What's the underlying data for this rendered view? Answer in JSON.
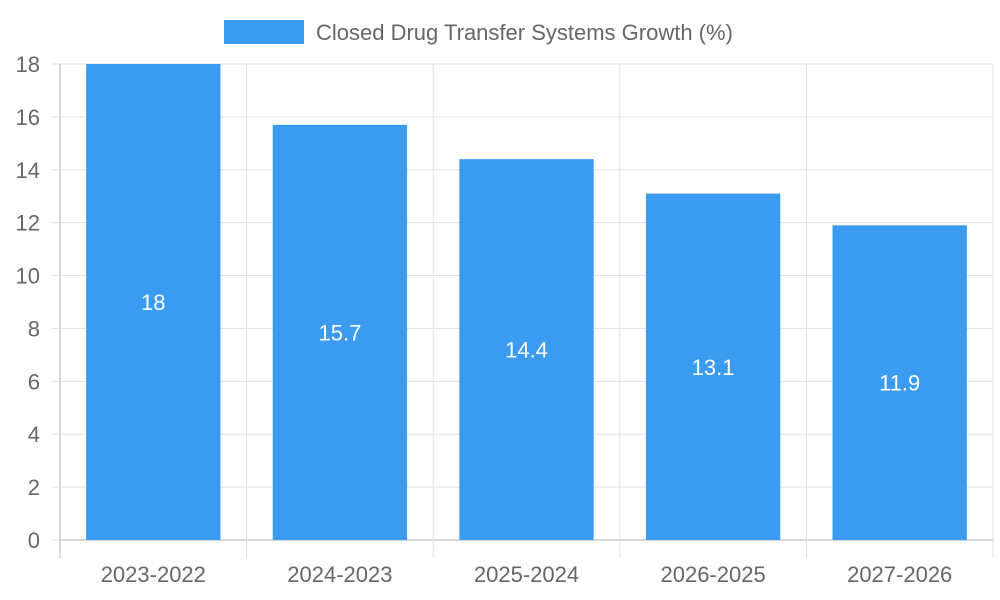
{
  "chart_data": {
    "type": "bar",
    "categories": [
      "2023-2022",
      "2024-2023",
      "2025-2024",
      "2026-2025",
      "2027-2026"
    ],
    "series": [
      {
        "name": "Closed Drug Transfer Systems Growth (%)",
        "values": [
          18,
          15.7,
          14.4,
          13.1,
          11.9
        ],
        "color": "#3a9bf0"
      }
    ],
    "value_labels": [
      "18",
      "15.7",
      "14.4",
      "13.1",
      "11.9"
    ],
    "y_ticks": [
      "0",
      "2",
      "4",
      "6",
      "8",
      "10",
      "12",
      "14",
      "16",
      "18"
    ],
    "ylim": [
      0,
      18
    ],
    "y_step": 2,
    "grid": true,
    "legend_position": "top"
  },
  "colors": {
    "grid": "#e0e0e0",
    "axis": "#b3b3b3",
    "text": "#666666",
    "bar_label": "#ffffff"
  }
}
